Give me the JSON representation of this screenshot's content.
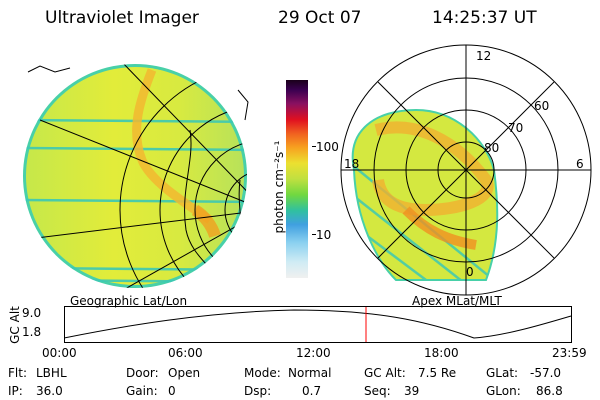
{
  "header": {
    "title": "Ultraviolet Imager",
    "date": "29 Oct 07",
    "time": "14:25:37 UT"
  },
  "left_panel": {
    "caption": "Geographic Lat/Lon"
  },
  "right_panel": {
    "caption": "Apex MLat/MLT",
    "mlt_labels": [
      "12",
      "18",
      "6",
      "0"
    ],
    "lat_labels": [
      "60",
      "70",
      "80"
    ]
  },
  "colorbar": {
    "unit_label": "photon cm⁻²s⁻¹",
    "tick_labels": [
      "100",
      "10"
    ],
    "tick_values": [
      100,
      10
    ],
    "log_scale": true
  },
  "altitude_plot": {
    "ylabel": "GC Alt",
    "y_ticks": [
      "9.0",
      "1.8"
    ],
    "x_ticks": [
      "00:00",
      "06:00",
      "12:00",
      "18:00",
      "23:59"
    ],
    "marker_color": "#ff0000"
  },
  "info": {
    "flt_label": "Flt:",
    "flt_value": "LBHL",
    "ip_label": "IP:",
    "ip_value": "36.0",
    "door_label": "Door:",
    "door_value": "Open",
    "gain_label": "Gain:",
    "gain_value": "0",
    "mode_label": "Mode:",
    "mode_value": "Normal",
    "dsp_label": "Dsp:",
    "dsp_value": "0.7",
    "gcalt_label": "GC Alt:",
    "gcalt_value": "7.5 Re",
    "seq_label": "Seq:",
    "seq_value": "39",
    "glat_label": "GLat:",
    "glat_value": "-57.0",
    "glon_label": "GLon:",
    "glon_value": "86.8"
  }
}
